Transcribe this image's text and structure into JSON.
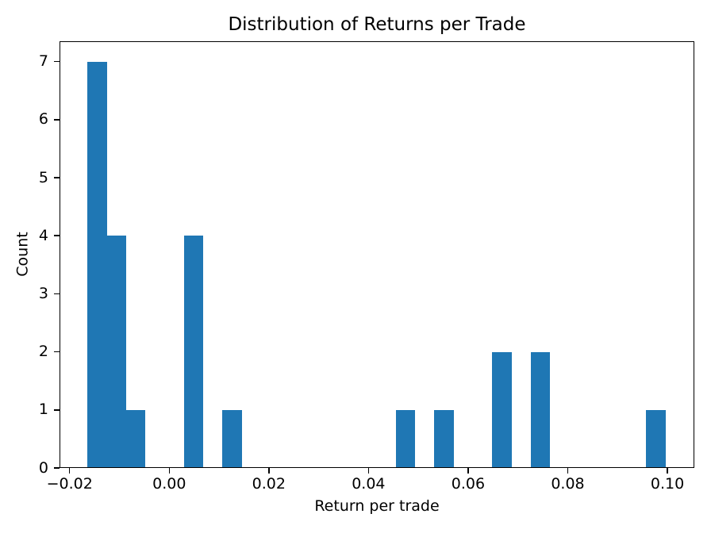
{
  "figure": {
    "background": "#ffffff"
  },
  "chart_data": {
    "type": "bar",
    "subtype": "histogram",
    "title": "Distribution of Returns per Trade",
    "xlabel": "Return per trade",
    "ylabel": "Count",
    "bar_color": "#1f77b4",
    "axis_color": "#000000",
    "text_color": "#000000",
    "grid": false,
    "bin_start": -0.0164,
    "bin_width": 0.0038667,
    "bin_counts": [
      7,
      4,
      1,
      0,
      0,
      4,
      0,
      1,
      0,
      0,
      0,
      0,
      0,
      0,
      0,
      0,
      1,
      0,
      1,
      0,
      0,
      2,
      0,
      2,
      0,
      0,
      0,
      0,
      0,
      1
    ],
    "bars": [
      {
        "x0": -0.0164,
        "x1": -0.0125333,
        "count": 7
      },
      {
        "x0": -0.0125333,
        "x1": -0.0086667,
        "count": 4
      },
      {
        "x0": -0.0086667,
        "x1": -0.0048,
        "count": 1
      },
      {
        "x0": 0.0029333,
        "x1": 0.0068,
        "count": 4
      },
      {
        "x0": 0.0106667,
        "x1": 0.0145333,
        "count": 1
      },
      {
        "x0": 0.0454667,
        "x1": 0.0493333,
        "count": 1
      },
      {
        "x0": 0.0532,
        "x1": 0.0570667,
        "count": 1
      },
      {
        "x0": 0.0648667,
        "x1": 0.0687333,
        "count": 2
      },
      {
        "x0": 0.0726,
        "x1": 0.0764667,
        "count": 2
      },
      {
        "x0": 0.0957333,
        "x1": 0.0996,
        "count": 1
      }
    ],
    "xlim": [
      -0.02203,
      0.10541
    ],
    "ylim": [
      0,
      7.35
    ],
    "xticks": [
      -0.02,
      0,
      0.02,
      0.04,
      0.06,
      0.08,
      0.1
    ],
    "xtick_labels": [
      "−0.02",
      "0.00",
      "0.02",
      "0.04",
      "0.06",
      "0.08",
      "0.10"
    ],
    "yticks": [
      0,
      1,
      2,
      3,
      4,
      5,
      6,
      7
    ],
    "ytick_labels": [
      "0",
      "1",
      "2",
      "3",
      "4",
      "5",
      "6",
      "7"
    ]
  }
}
